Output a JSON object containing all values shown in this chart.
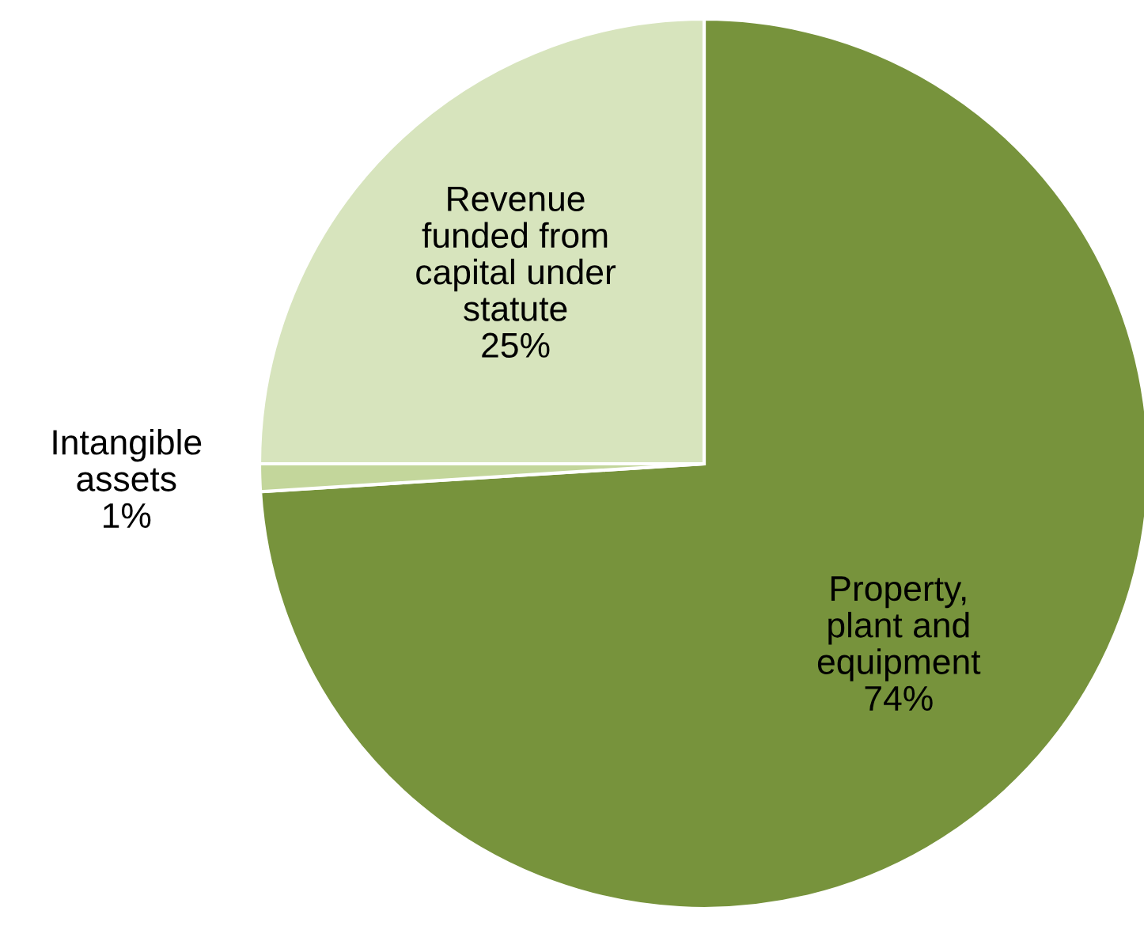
{
  "chart_data": {
    "type": "pie",
    "categories": [
      "Property,\nplant and\nequipment",
      "Intangible\nassets",
      "Revenue\nfunded from\ncapital under\nstatute"
    ],
    "values": [
      74,
      1,
      25
    ],
    "value_labels": [
      "74%",
      "1%",
      "25%"
    ],
    "colors": [
      "#77933c",
      "#c3d69b",
      "#d7e4bd"
    ],
    "legend": false
  }
}
